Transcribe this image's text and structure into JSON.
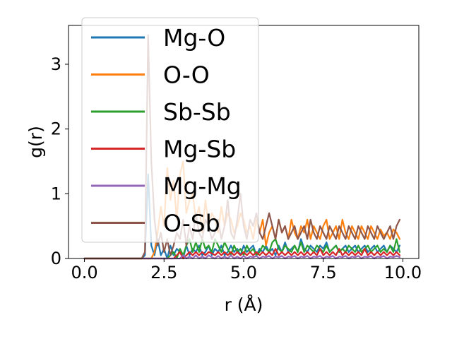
{
  "chart_data": {
    "type": "line",
    "title": "",
    "xlabel": "r (Å)",
    "ylabel": "g(r)",
    "xlim": [
      -0.5,
      10.5
    ],
    "ylim": [
      0,
      3.6
    ],
    "xticks": [
      0.0,
      2.5,
      5.0,
      7.5,
      10.0
    ],
    "xtick_labels": [
      "0.0",
      "2.5",
      "5.0",
      "7.5",
      "10.0"
    ],
    "yticks": [
      0,
      1,
      2,
      3
    ],
    "ytick_labels": [
      "0",
      "1",
      "2",
      "3"
    ],
    "grid": false,
    "legend_position": "upper-left",
    "x": [
      0.0,
      0.1,
      0.2,
      0.3,
      0.4,
      0.5,
      0.6,
      0.7,
      0.8,
      0.9,
      1.0,
      1.1,
      1.2,
      1.3,
      1.4,
      1.5,
      1.6,
      1.7,
      1.8,
      1.9,
      2.0,
      2.1,
      2.2,
      2.3,
      2.4,
      2.5,
      2.6,
      2.7,
      2.8,
      2.9,
      3.0,
      3.1,
      3.2,
      3.3,
      3.4,
      3.5,
      3.6,
      3.7,
      3.8,
      3.9,
      4.0,
      4.1,
      4.2,
      4.3,
      4.4,
      4.5,
      4.6,
      4.7,
      4.8,
      4.9,
      5.0,
      5.1,
      5.2,
      5.3,
      5.4,
      5.5,
      5.6,
      5.7,
      5.8,
      5.9,
      6.0,
      6.1,
      6.2,
      6.3,
      6.4,
      6.5,
      6.6,
      6.7,
      6.8,
      6.9,
      7.0,
      7.1,
      7.2,
      7.3,
      7.4,
      7.5,
      7.6,
      7.7,
      7.8,
      7.9,
      8.0,
      8.1,
      8.2,
      8.3,
      8.4,
      8.5,
      8.6,
      8.7,
      8.8,
      8.9,
      9.0,
      9.1,
      9.2,
      9.3,
      9.4,
      9.5,
      9.6,
      9.7,
      9.8,
      9.9
    ],
    "series": [
      {
        "name": "Mg-O",
        "color": "#1f77b4",
        "values": [
          0,
          0,
          0,
          0,
          0,
          0,
          0,
          0,
          0,
          0,
          0,
          0,
          0,
          0,
          0,
          0,
          0,
          0,
          0,
          0.05,
          1.3,
          0.2,
          0.05,
          0.3,
          0.05,
          0.15,
          0.0,
          0.2,
          0.05,
          0.15,
          0.1,
          0.0,
          0.2,
          0.05,
          0.15,
          0.1,
          0.2,
          0.05,
          0.1,
          0.2,
          0.05,
          0.15,
          0.1,
          0.2,
          0.05,
          0.1,
          0.2,
          0.1,
          0.15,
          0.05,
          0.2,
          0.1,
          0.15,
          0.2,
          0.05,
          0.15,
          0.1,
          0.2,
          0.1,
          0.15,
          0.05,
          0.2,
          0.1,
          0.25,
          0.1,
          0.15,
          0.2,
          0.1,
          0.3,
          0.15,
          0.1,
          0.2,
          0.15,
          0.1,
          0.2,
          0.15,
          0.25,
          0.1,
          0.15,
          0.2,
          0.1,
          0.15,
          0.2,
          0.1,
          0.15,
          0.2,
          0.1,
          0.15,
          0.2,
          0.1,
          0.15,
          0.2,
          0.1,
          0.15,
          0.2,
          0.1,
          0.2,
          0.15,
          0.1,
          0.2
        ]
      },
      {
        "name": "O-O",
        "color": "#ff7f0e",
        "values": [
          0,
          0,
          0,
          0,
          0,
          0,
          0,
          0,
          0,
          0,
          0,
          0,
          0,
          0,
          0,
          0,
          0,
          0,
          0,
          0,
          0,
          0,
          0.1,
          0.4,
          0.8,
          0.5,
          1.4,
          0.9,
          1.2,
          0.6,
          1.3,
          1.5,
          0.7,
          0.9,
          1.0,
          0.6,
          0.8,
          0.4,
          0.9,
          0.5,
          0.7,
          0.6,
          0.4,
          0.8,
          0.5,
          0.7,
          0.6,
          0.4,
          0.5,
          0.7,
          0.6,
          0.4,
          0.5,
          0.3,
          0.6,
          0.4,
          0.6,
          0.2,
          0.4,
          0.5,
          0.3,
          0.6,
          0.4,
          0.5,
          0.3,
          0.6,
          0.4,
          0.3,
          0.5,
          0.4,
          0.6,
          0.3,
          0.5,
          0.4,
          0.3,
          0.5,
          0.6,
          0.3,
          0.4,
          0.5,
          0.3,
          0.6,
          0.4,
          0.3,
          0.5,
          0.4,
          0.3,
          0.5,
          0.4,
          0.3,
          0.5,
          0.4,
          0.3,
          0.45,
          0.35,
          0.4,
          0.3,
          0.45,
          0.4,
          0.3
        ]
      },
      {
        "name": "Sb-Sb",
        "color": "#2ca02c",
        "values": [
          0,
          0,
          0,
          0,
          0,
          0,
          0,
          0,
          0,
          0,
          0,
          0,
          0,
          0,
          0,
          0,
          0,
          0,
          0,
          0,
          0,
          0,
          0,
          0,
          0,
          0,
          0,
          0.05,
          0.1,
          0.0,
          0.15,
          0.05,
          0.2,
          0.3,
          0.1,
          0.25,
          0.1,
          0.3,
          0.15,
          0.2,
          0.1,
          0.3,
          0.2,
          0.1,
          0.25,
          0.15,
          0.05,
          0.2,
          0.1,
          0.15,
          0.05,
          0.2,
          0.1,
          0.15,
          0.05,
          0.1,
          0.2,
          0.15,
          0.1,
          0.25,
          0.3,
          0.15,
          0.1,
          0.2,
          0.15,
          0.1,
          0.2,
          0.1,
          0.25,
          0.1,
          0.2,
          0.15,
          0.1,
          0.2,
          0.15,
          0.1,
          0.2,
          0.1,
          0.15,
          0.2,
          0.1,
          0.15,
          0.1,
          0.2,
          0.15,
          0.1,
          0.2,
          0.1,
          0.15,
          0.2,
          0.1,
          0.15,
          0.2,
          0.1,
          0.15,
          0.1,
          0.2,
          0.1,
          0.3,
          0.1
        ]
      },
      {
        "name": "Mg-Sb",
        "color": "#d62728",
        "values": [
          0,
          0,
          0,
          0,
          0,
          0,
          0,
          0,
          0,
          0,
          0,
          0,
          0,
          0,
          0,
          0,
          0,
          0,
          0,
          0,
          0,
          0,
          0,
          0,
          0,
          0,
          0,
          0,
          0,
          0.05,
          0.1,
          0.0,
          0.05,
          0.1,
          0.05,
          0.1,
          0.05,
          0.1,
          0.05,
          0.1,
          0.08,
          0.05,
          0.1,
          0.05,
          0.1,
          0.05,
          0.1,
          0.05,
          0.1,
          0.05,
          0.1,
          0.05,
          0.1,
          0.05,
          0.1,
          0.05,
          0.1,
          0.05,
          0.1,
          0.05,
          0.15,
          0.05,
          0.1,
          0.05,
          0.1,
          0.05,
          0.1,
          0.05,
          0.1,
          0.05,
          0.1,
          0.05,
          0.1,
          0.05,
          0.15,
          0.05,
          0.1,
          0.05,
          0.1,
          0.05,
          0.15,
          0.05,
          0.1,
          0.05,
          0.1,
          0.05,
          0.1,
          0.05,
          0.15,
          0.05,
          0.1,
          0.05,
          0.1,
          0.05,
          0.1,
          0.05,
          0.1,
          0.05,
          0.1,
          0.05
        ]
      },
      {
        "name": "Mg-Mg",
        "color": "#9467bd",
        "values": [
          0,
          0,
          0,
          0,
          0,
          0,
          0,
          0,
          0,
          0,
          0,
          0,
          0,
          0,
          0,
          0,
          0,
          0,
          0,
          0,
          0,
          0,
          0,
          0,
          0,
          0,
          0,
          0,
          0,
          0,
          0,
          0.05,
          0.0,
          0.03,
          0.0,
          0.05,
          0.0,
          0.03,
          0.0,
          0.05,
          0.02,
          0.0,
          0.04,
          0.0,
          0.03,
          0.0,
          0.05,
          0.0,
          0.03,
          0.0,
          0.04,
          0.0,
          0.03,
          0.02,
          0.04,
          0.0,
          0.03,
          0.02,
          0.04,
          0.0,
          0.03,
          0.02,
          0.04,
          0.0,
          0.03,
          0.02,
          0.04,
          0.0,
          0.03,
          0.02,
          0.04,
          0.0,
          0.03,
          0.02,
          0.04,
          0.0,
          0.03,
          0.02,
          0.04,
          0.0,
          0.03,
          0.02,
          0.04,
          0.0,
          0.03,
          0.02,
          0.04,
          0.0,
          0.03,
          0.02,
          0.04,
          0.0,
          0.03,
          0.02,
          0.04,
          0.0,
          0.03,
          0.02,
          0.04,
          0.02
        ]
      },
      {
        "name": "O-Sb",
        "color": "#8c564b",
        "values": [
          0,
          0,
          0,
          0,
          0,
          0,
          0,
          0,
          0,
          0,
          0,
          0,
          0,
          0,
          0,
          0,
          0,
          0,
          0,
          0.1,
          3.45,
          1.5,
          0.6,
          0.2,
          0.4,
          0.1,
          0.3,
          0.05,
          0.2,
          0.4,
          0.3,
          0.6,
          0.2,
          0.5,
          0.3,
          0.7,
          0.4,
          0.3,
          0.6,
          0.5,
          0.3,
          0.4,
          0.6,
          0.3,
          0.5,
          0.9,
          0.4,
          0.3,
          0.6,
          1.0,
          0.5,
          0.3,
          0.6,
          0.5,
          0.7,
          0.4,
          0.3,
          0.5,
          0.7,
          0.5,
          0.3,
          0.6,
          0.4,
          0.5,
          0.3,
          0.4,
          0.5,
          0.3,
          0.4,
          0.5,
          0.3,
          0.6,
          0.4,
          0.3,
          0.5,
          0.4,
          0.3,
          0.5,
          0.4,
          0.3,
          0.5,
          0.4,
          0.3,
          0.5,
          0.4,
          0.3,
          0.5,
          0.4,
          0.3,
          0.5,
          0.4,
          0.3,
          0.5,
          0.4,
          0.3,
          0.4,
          0.5,
          0.3,
          0.5,
          0.6
        ]
      }
    ]
  }
}
